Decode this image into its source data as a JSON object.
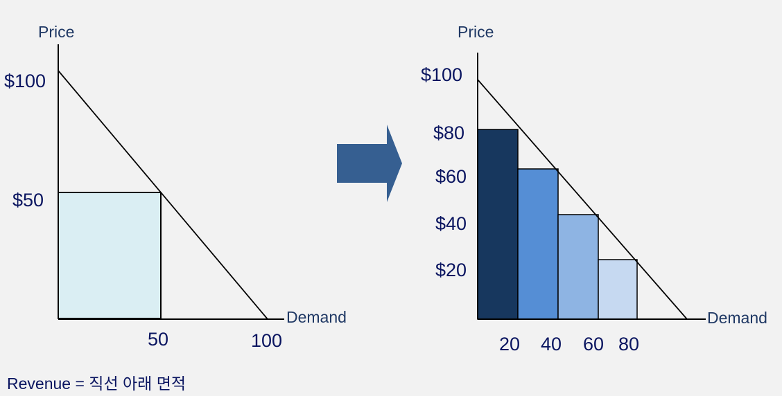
{
  "colors": {
    "background": "#f2f2f2",
    "line": "#000000",
    "axis_title": "#1f3864",
    "tick_label": "#0a1560",
    "revenue_box": "#daeef3",
    "arrow": "#365f91",
    "bars": [
      "#17375e",
      "#558ed5",
      "#8eb4e3",
      "#c6d9f1"
    ]
  },
  "left_chart": {
    "ylabel": "Price",
    "xlabel": "Demand",
    "y_ticks": [
      "$100",
      "$50"
    ],
    "x_ticks": [
      "50",
      "100"
    ],
    "chart_data": {
      "type": "area",
      "demand_line": {
        "x": [
          0,
          100
        ],
        "y": [
          100,
          0
        ]
      },
      "revenue_rect": {
        "quantity": 50,
        "price": 50
      },
      "xlim": [
        0,
        100
      ],
      "ylim": [
        0,
        100
      ]
    }
  },
  "arrow": {
    "icon": "right-arrow-icon"
  },
  "right_chart": {
    "ylabel": "Price",
    "xlabel": "Demand",
    "y_ticks": [
      "$100",
      "$80",
      "$60",
      "$40",
      "$20"
    ],
    "x_ticks": [
      "20",
      "40",
      "60",
      "80"
    ],
    "chart_data": {
      "type": "bar",
      "categories": [
        "20",
        "40",
        "60",
        "80"
      ],
      "values": [
        80,
        60,
        40,
        20
      ],
      "demand_line": {
        "x": [
          0,
          100
        ],
        "y": [
          100,
          0
        ]
      },
      "xlim": [
        0,
        100
      ],
      "ylim": [
        0,
        100
      ]
    }
  },
  "caption": "Revenue = 직선 아래 면적"
}
